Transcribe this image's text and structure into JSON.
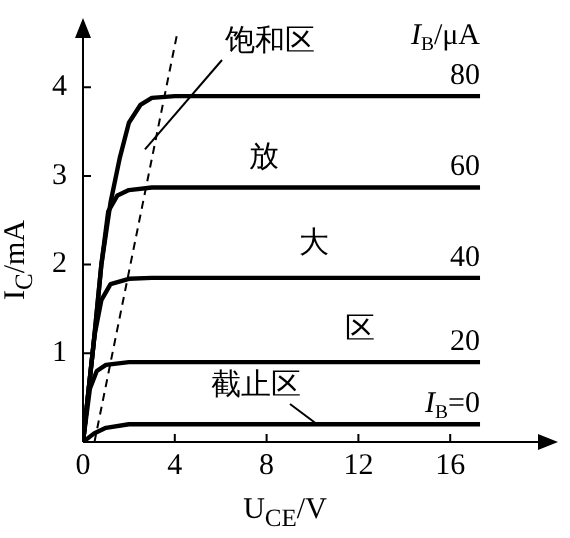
{
  "chart_data": {
    "type": "line",
    "xlabel": "U$_{CE}$/V",
    "ylabel": "I$_{C}$/mA",
    "legend_title": "I$_{B}$/μA",
    "marker": "none",
    "annotations": [
      {
        "text": "饱和区",
        "x": 2.7,
        "y": 3.3
      },
      "放",
      "大",
      "区",
      {
        "text": "截止区",
        "x": 10.2,
        "y": 0.2
      }
    ],
    "xlim": [
      0,
      20
    ],
    "ylim": [
      0,
      4.6
    ],
    "xticks": [
      0,
      4,
      8,
      12,
      16
    ],
    "yticks": [
      1,
      2,
      3,
      4
    ],
    "series": [
      {
        "name": "80",
        "color": "#000000",
        "x": [
          0,
          0.5,
          0.8,
          1.2,
          1.6,
          2,
          2.5,
          3,
          4,
          17.3
        ],
        "values": [
          0,
          1.2,
          2,
          2.7,
          3.2,
          3.6,
          3.8,
          3.88,
          3.9,
          3.9
        ]
      },
      {
        "name": "60",
        "color": "#000000",
        "x": [
          0,
          0.5,
          0.8,
          1.1,
          1.5,
          2,
          3,
          17.3
        ],
        "values": [
          0,
          1.2,
          2,
          2.6,
          2.78,
          2.84,
          2.87,
          2.87
        ]
      },
      {
        "name": "40",
        "color": "#000000",
        "x": [
          0,
          0.5,
          0.8,
          1.2,
          2,
          3,
          17.3
        ],
        "values": [
          0,
          1.2,
          1.6,
          1.78,
          1.84,
          1.85,
          1.85
        ]
      },
      {
        "name": "20",
        "color": "#000000",
        "x": [
          0,
          0.3,
          0.6,
          1,
          2,
          17.3
        ],
        "values": [
          0,
          0.6,
          0.8,
          0.87,
          0.9,
          0.9
        ]
      },
      {
        "name": "I$_{B}$=0",
        "color": "#000000",
        "x": [
          0,
          0.5,
          1,
          2,
          17.3
        ],
        "values": [
          0,
          0.1,
          0.16,
          0.2,
          0.2
        ]
      },
      {
        "color": "#000000",
        "line_style": "dashed",
        "x": [
          0.5,
          4.1
        ],
        "values": [
          0,
          4.6
        ]
      }
    ]
  }
}
